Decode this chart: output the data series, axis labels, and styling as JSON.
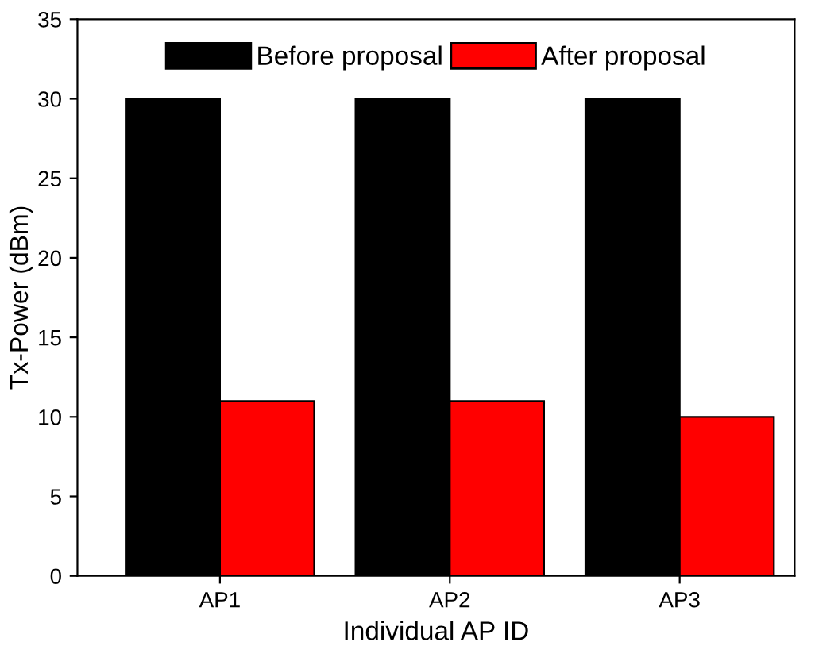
{
  "chart_data": {
    "type": "bar",
    "xlabel": "Individual AP ID",
    "ylabel": "Tx-Power (dBm)",
    "categories": [
      "AP1",
      "AP2",
      "AP3"
    ],
    "series": [
      {
        "name": "Before proposal",
        "color": "#000000",
        "values": [
          30,
          30,
          30
        ]
      },
      {
        "name": "After proposal",
        "color": "#ff0000",
        "values": [
          11,
          11,
          10
        ]
      }
    ],
    "ylim": [
      0,
      35
    ],
    "yticks": [
      0,
      5,
      10,
      15,
      20,
      25,
      30,
      35
    ],
    "grid": false,
    "legend": "top"
  }
}
